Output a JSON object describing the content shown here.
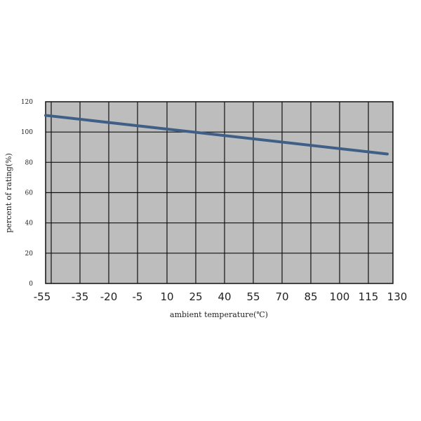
{
  "chart_data": {
    "type": "line",
    "xlabel": "ambient temperature(℃)",
    "ylabel": "percent of rating(%)",
    "categories": [
      "-55",
      "-35",
      "-20",
      "-5",
      "10",
      "25",
      "40",
      "55",
      "70",
      "85",
      "100",
      "115",
      "130"
    ],
    "yticks": [
      "0",
      "20",
      "40",
      "60",
      "80",
      "100",
      "120"
    ],
    "ylim": [
      0,
      120
    ],
    "grid": true,
    "series": [
      {
        "points": [
          {
            "x": "-55",
            "y": 111
          },
          {
            "x": "115",
            "y": 85.5
          }
        ]
      }
    ],
    "colors": {
      "plot_background": "#bdbdbd",
      "grid": "#111111",
      "line": "#3f5f87"
    }
  }
}
